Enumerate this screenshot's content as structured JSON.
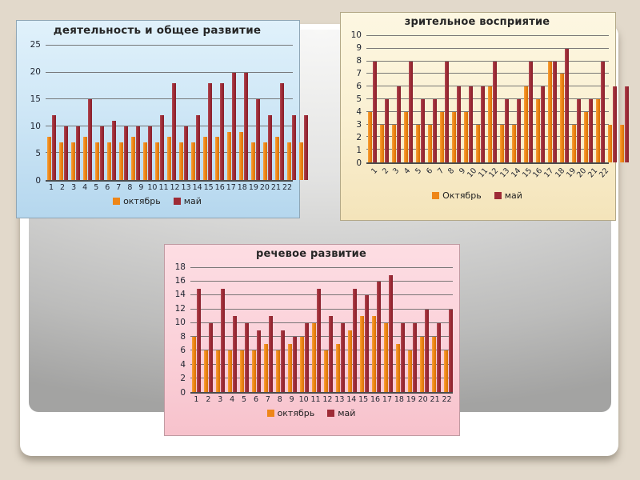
{
  "slide": {
    "background_color": "#e2d9cb",
    "card_color": "#ffffff",
    "inner_panel_colors": [
      "#f8f8f7",
      "#a3a3a2"
    ]
  },
  "colors": {
    "october_bar": "#EE8618",
    "may_bar": "#9E2B36"
  },
  "chart_data": [
    {
      "type": "bar",
      "title": "деятельность и общее развитие",
      "categories": [
        "1",
        "2",
        "3",
        "4",
        "5",
        "6",
        "7",
        "8",
        "9",
        "10",
        "11",
        "12",
        "13",
        "14",
        "15",
        "16",
        "17",
        "18",
        "19",
        "20",
        "21",
        "22"
      ],
      "series": [
        {
          "name": "октябрь",
          "color": "#EE8618",
          "values": [
            8,
            7,
            7,
            8,
            7,
            7,
            7,
            8,
            7,
            7,
            8,
            7,
            7,
            8,
            8,
            9,
            9,
            7,
            7,
            8,
            7,
            7
          ]
        },
        {
          "name": "май",
          "color": "#9E2B36",
          "values": [
            12,
            10,
            10,
            15,
            10,
            11,
            10,
            10,
            10,
            12,
            18,
            10,
            12,
            18,
            18,
            20,
            20,
            15,
            12,
            18,
            12,
            12
          ]
        }
      ],
      "ylim": [
        0,
        25
      ],
      "yticks": [
        0,
        5,
        10,
        15,
        20,
        25
      ],
      "x_label_rotation": 0,
      "grid": true,
      "legend_position": "bottom",
      "panel_background": [
        "#e0f1fb",
        "#b5d7ee"
      ]
    },
    {
      "type": "bar",
      "title": "зрительное восприятие",
      "categories": [
        "1",
        "2",
        "3",
        "4",
        "5",
        "6",
        "7",
        "8",
        "9",
        "10",
        "11",
        "12",
        "13",
        "14",
        "15",
        "16",
        "17",
        "18",
        "19",
        "20",
        "21",
        "22"
      ],
      "series": [
        {
          "name": "Октябрь",
          "color": "#EE8618",
          "values": [
            4,
            3,
            3,
            4,
            3,
            3,
            4,
            4,
            4,
            3,
            6,
            3,
            3,
            6,
            5,
            8,
            7,
            3,
            4,
            5,
            3,
            3
          ]
        },
        {
          "name": "май",
          "color": "#9E2B36",
          "values": [
            8,
            5,
            6,
            8,
            5,
            5,
            8,
            6,
            6,
            6,
            8,
            5,
            5,
            8,
            6,
            8,
            9,
            5,
            5,
            8,
            6,
            6
          ]
        }
      ],
      "ylim": [
        0,
        10
      ],
      "yticks": [
        0,
        1,
        2,
        3,
        4,
        5,
        6,
        7,
        8,
        9,
        10
      ],
      "x_label_rotation": -48,
      "grid": true,
      "legend_position": "bottom",
      "panel_background": [
        "#fdf7e2",
        "#f4e4ba"
      ]
    },
    {
      "type": "bar",
      "title": "речевое развитие",
      "categories": [
        "1",
        "2",
        "3",
        "4",
        "5",
        "6",
        "7",
        "8",
        "9",
        "10",
        "11",
        "12",
        "13",
        "14",
        "15",
        "16",
        "17",
        "18",
        "19",
        "20",
        "21",
        "22"
      ],
      "series": [
        {
          "name": "октябрь",
          "color": "#EE8618",
          "values": [
            8,
            6,
            6,
            6,
            6,
            6,
            7,
            6,
            7,
            8,
            10,
            6,
            7,
            9,
            11,
            11,
            10,
            7,
            6,
            8,
            8,
            6
          ]
        },
        {
          "name": "май",
          "color": "#9E2B36",
          "values": [
            15,
            10,
            15,
            11,
            10,
            9,
            11,
            9,
            8,
            10,
            15,
            11,
            10,
            15,
            14,
            16,
            17,
            10,
            10,
            12,
            10,
            12
          ]
        }
      ],
      "ylim": [
        0,
        18
      ],
      "yticks": [
        0,
        2,
        4,
        6,
        8,
        10,
        12,
        14,
        16,
        18
      ],
      "x_label_rotation": 0,
      "grid": true,
      "legend_position": "bottom",
      "panel_background": [
        "#fddde3",
        "#f7c2cc"
      ]
    }
  ]
}
